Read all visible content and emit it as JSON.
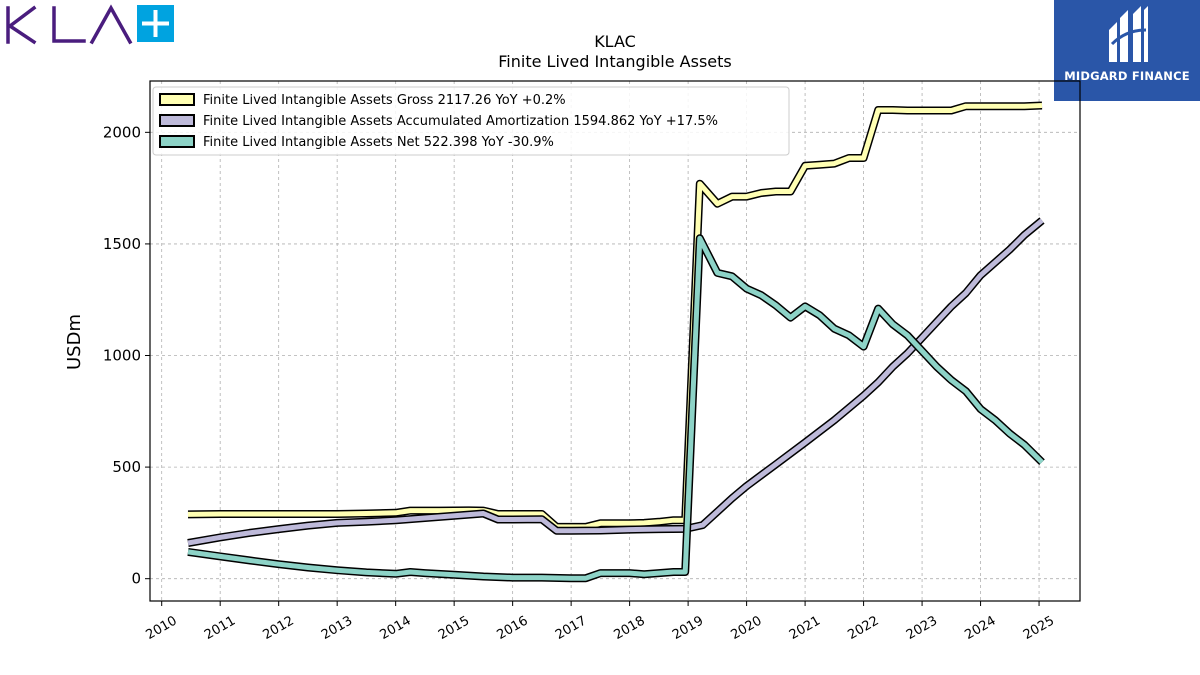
{
  "logos": {
    "left_brand": "KLA",
    "right_brand": "MIDGARD FINANCE"
  },
  "colors": {
    "gross": "#ffffb3",
    "amortization": "#bebada",
    "net": "#8dd3c7",
    "kla_purple": "#4a1d7e",
    "kla_plus_blue": "#00a3e0",
    "midgard_blue": "#2a56a8"
  },
  "chart_data": {
    "type": "line",
    "title": "KLAC",
    "subtitle": "Finite Lived Intangible Assets",
    "ylabel": "USDm",
    "xlabel": "",
    "xlim": [
      2009.8,
      2025.7
    ],
    "ylim": [
      -100,
      2230
    ],
    "x_ticks": [
      2010,
      2011,
      2012,
      2013,
      2014,
      2015,
      2016,
      2017,
      2018,
      2019,
      2020,
      2021,
      2022,
      2023,
      2024,
      2025
    ],
    "y_ticks": [
      0,
      500,
      1000,
      1500,
      2000
    ],
    "grid": true,
    "legend_position": "top-left",
    "series": [
      {
        "name": "Finite Lived Intangible Assets Gross",
        "legend_label": "Finite Lived Intangible Assets Gross  2117.26 YoY +0.2%",
        "color_key": "gross",
        "points": [
          [
            2010.45,
            288
          ],
          [
            2011.0,
            290
          ],
          [
            2011.5,
            290
          ],
          [
            2012.0,
            290
          ],
          [
            2012.5,
            290
          ],
          [
            2013.0,
            290
          ],
          [
            2013.5,
            292
          ],
          [
            2014.0,
            295
          ],
          [
            2014.25,
            305
          ],
          [
            2014.75,
            305
          ],
          [
            2015.25,
            306
          ],
          [
            2015.5,
            305
          ],
          [
            2015.75,
            290
          ],
          [
            2016.0,
            290
          ],
          [
            2016.5,
            290
          ],
          [
            2016.75,
            232
          ],
          [
            2017.0,
            232
          ],
          [
            2017.25,
            232
          ],
          [
            2017.5,
            248
          ],
          [
            2017.75,
            248
          ],
          [
            2018.0,
            248
          ],
          [
            2018.25,
            250
          ],
          [
            2018.5,
            255
          ],
          [
            2018.75,
            262
          ],
          [
            2018.95,
            262
          ],
          [
            2019.2,
            1770
          ],
          [
            2019.5,
            1680
          ],
          [
            2019.75,
            1712
          ],
          [
            2020.0,
            1712
          ],
          [
            2020.25,
            1728
          ],
          [
            2020.5,
            1735
          ],
          [
            2020.75,
            1735
          ],
          [
            2021.0,
            1850
          ],
          [
            2021.25,
            1855
          ],
          [
            2021.5,
            1860
          ],
          [
            2021.75,
            1885
          ],
          [
            2022.0,
            1885
          ],
          [
            2022.25,
            2100
          ],
          [
            2022.5,
            2100
          ],
          [
            2022.75,
            2098
          ],
          [
            2023.0,
            2098
          ],
          [
            2023.25,
            2098
          ],
          [
            2023.5,
            2098
          ],
          [
            2023.75,
            2117
          ],
          [
            2024.0,
            2117
          ],
          [
            2024.25,
            2117
          ],
          [
            2024.5,
            2117
          ],
          [
            2024.75,
            2117
          ],
          [
            2025.05,
            2120
          ]
        ]
      },
      {
        "name": "Finite Lived Intangible Assets Accumulated Amortization",
        "legend_label": "Finite Lived Intangible Assets Accumulated Amortization  1594.862 YoY +17.5%",
        "color_key": "amortization",
        "points": [
          [
            2010.45,
            160
          ],
          [
            2011.0,
            185
          ],
          [
            2011.5,
            205
          ],
          [
            2012.0,
            222
          ],
          [
            2012.5,
            238
          ],
          [
            2013.0,
            250
          ],
          [
            2013.5,
            255
          ],
          [
            2014.0,
            262
          ],
          [
            2014.5,
            272
          ],
          [
            2015.0,
            282
          ],
          [
            2015.5,
            292
          ],
          [
            2015.75,
            265
          ],
          [
            2016.0,
            265
          ],
          [
            2016.5,
            266
          ],
          [
            2016.75,
            215
          ],
          [
            2017.0,
            215
          ],
          [
            2017.5,
            216
          ],
          [
            2018.0,
            220
          ],
          [
            2018.5,
            222
          ],
          [
            2018.95,
            223
          ],
          [
            2019.25,
            240
          ],
          [
            2019.5,
            300
          ],
          [
            2019.75,
            360
          ],
          [
            2020.0,
            415
          ],
          [
            2020.5,
            512
          ],
          [
            2021.0,
            610
          ],
          [
            2021.5,
            710
          ],
          [
            2022.0,
            820
          ],
          [
            2022.25,
            880
          ],
          [
            2022.5,
            950
          ],
          [
            2022.75,
            1010
          ],
          [
            2023.0,
            1080
          ],
          [
            2023.25,
            1150
          ],
          [
            2023.5,
            1220
          ],
          [
            2023.75,
            1280
          ],
          [
            2024.0,
            1360
          ],
          [
            2024.5,
            1475
          ],
          [
            2024.75,
            1540
          ],
          [
            2025.05,
            1605
          ]
        ]
      },
      {
        "name": "Finite Lived Intangible Assets Net",
        "legend_label": "Finite Lived Intangible Assets Net  522.398 YoY -30.9%",
        "color_key": "net",
        "points": [
          [
            2010.45,
            120
          ],
          [
            2011.0,
            100
          ],
          [
            2011.5,
            82
          ],
          [
            2012.0,
            65
          ],
          [
            2012.5,
            50
          ],
          [
            2013.0,
            38
          ],
          [
            2013.5,
            28
          ],
          [
            2014.0,
            22
          ],
          [
            2014.25,
            30
          ],
          [
            2014.5,
            25
          ],
          [
            2015.0,
            18
          ],
          [
            2015.5,
            10
          ],
          [
            2016.0,
            5
          ],
          [
            2016.5,
            5
          ],
          [
            2017.0,
            2
          ],
          [
            2017.25,
            2
          ],
          [
            2017.5,
            25
          ],
          [
            2018.0,
            25
          ],
          [
            2018.25,
            20
          ],
          [
            2018.5,
            25
          ],
          [
            2018.75,
            30
          ],
          [
            2018.95,
            30
          ],
          [
            2019.2,
            1525
          ],
          [
            2019.5,
            1370
          ],
          [
            2019.75,
            1355
          ],
          [
            2020.0,
            1300
          ],
          [
            2020.25,
            1270
          ],
          [
            2020.5,
            1225
          ],
          [
            2020.75,
            1170
          ],
          [
            2021.0,
            1220
          ],
          [
            2021.25,
            1180
          ],
          [
            2021.5,
            1120
          ],
          [
            2021.75,
            1090
          ],
          [
            2022.0,
            1040
          ],
          [
            2022.25,
            1210
          ],
          [
            2022.5,
            1140
          ],
          [
            2022.75,
            1090
          ],
          [
            2023.0,
            1020
          ],
          [
            2023.25,
            950
          ],
          [
            2023.5,
            890
          ],
          [
            2023.75,
            840
          ],
          [
            2024.0,
            760
          ],
          [
            2024.25,
            710
          ],
          [
            2024.5,
            650
          ],
          [
            2024.75,
            600
          ],
          [
            2025.05,
            522
          ]
        ]
      }
    ]
  }
}
